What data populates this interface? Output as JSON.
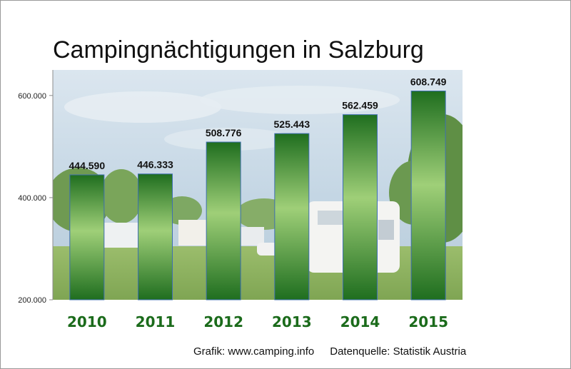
{
  "chart_data": {
    "type": "bar",
    "title": "Campingnächtigungen in Salzburg",
    "categories": [
      "2010",
      "2011",
      "2012",
      "2013",
      "2014",
      "2015"
    ],
    "values": [
      444590,
      446333,
      508776,
      525443,
      562459,
      608749
    ],
    "value_labels": [
      "444.590",
      "446.333",
      "508.776",
      "525.443",
      "562.459",
      "608.749"
    ],
    "ylim": [
      200000,
      650000
    ],
    "yticks": [
      200000,
      400000,
      600000
    ],
    "ytick_labels": [
      "200.000",
      "400.000",
      "600.000"
    ],
    "xlabel": "",
    "ylabel": "",
    "legend": "none",
    "grid": false,
    "colors": {
      "bar_dark": "#1f6e1f",
      "bar_light": "#9fcf78",
      "category_label": "#1b6b1b",
      "sky": "#c9dbe9",
      "grass": "#8db05c"
    }
  },
  "footer": {
    "credit": "Grafik: www.camping.info",
    "source": "Datenquelle: Statistik Austria"
  }
}
